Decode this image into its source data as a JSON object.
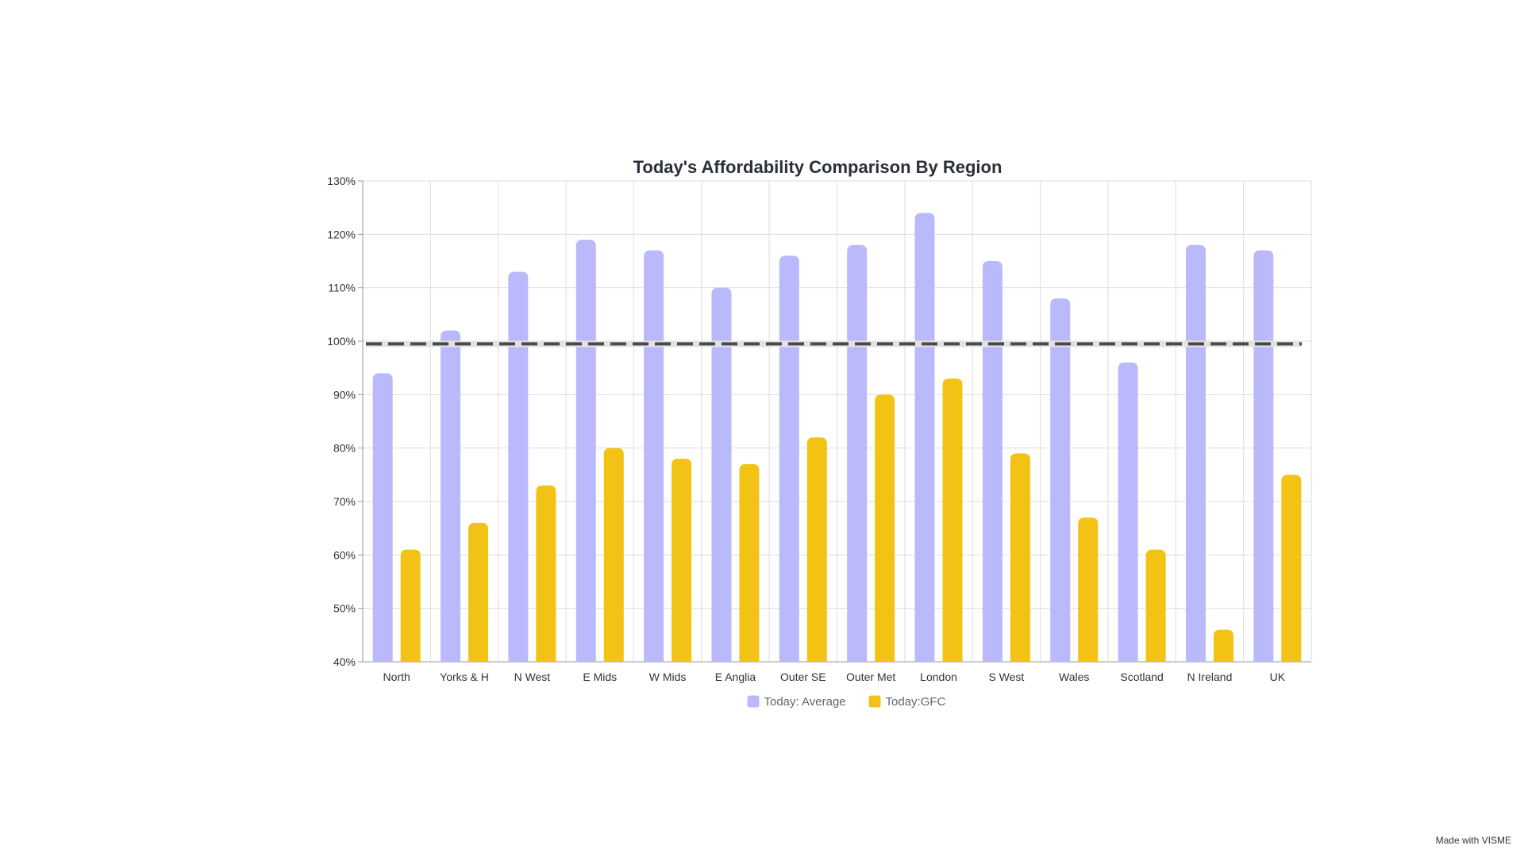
{
  "watermark": "Made with VISME",
  "chart_data": {
    "type": "bar",
    "title": "Today's Affordability Comparison By Region",
    "xlabel": "",
    "ylabel": "",
    "categories": [
      "North",
      "Yorks & H",
      "N West",
      "E Mids",
      "W Mids",
      "E Anglia",
      "Outer SE",
      "Outer Met",
      "London",
      "S West",
      "Wales",
      "Scotland",
      "N Ireland",
      "UK"
    ],
    "series": [
      {
        "name": "Today: Average",
        "color": "#b9b9fb",
        "values": [
          94,
          102,
          113,
          119,
          117,
          110,
          116,
          118,
          124,
          115,
          108,
          96,
          118,
          117
        ]
      },
      {
        "name": "Today:GFC",
        "color": "#f2c214",
        "values": [
          61,
          66,
          73,
          80,
          78,
          77,
          82,
          90,
          93,
          79,
          67,
          61,
          46,
          75
        ]
      }
    ],
    "ylim": [
      40,
      130
    ],
    "yticks": [
      40,
      50,
      60,
      70,
      80,
      90,
      100,
      110,
      120,
      130
    ],
    "ytick_suffix": "%",
    "reference_line": {
      "value": 99.5,
      "style": "dashed",
      "color": "#4a4a4a"
    },
    "grid": true,
    "legend_position": "bottom"
  }
}
